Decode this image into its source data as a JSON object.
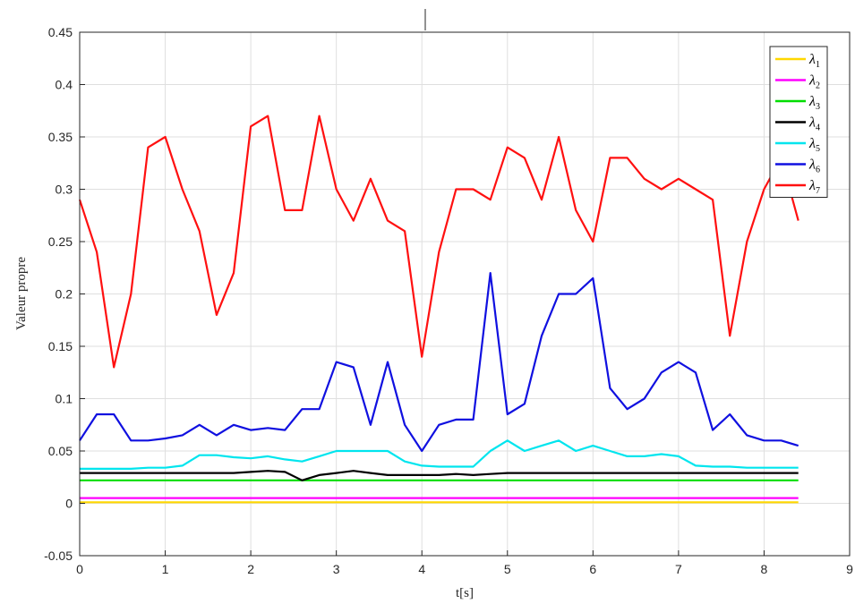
{
  "chart_data": {
    "type": "line",
    "title": "",
    "xlabel": "t[s]",
    "ylabel": "Valeur propre",
    "xlim": [
      0,
      9
    ],
    "ylim": [
      -0.05,
      0.45
    ],
    "x_ticks": [
      "0",
      "1",
      "2",
      "3",
      "4",
      "5",
      "6",
      "7",
      "8",
      "9"
    ],
    "y_ticks": [
      "-0.05",
      "0",
      "0.05",
      "0.1",
      "0.15",
      "0.2",
      "0.25",
      "0.3",
      "0.35",
      "0.4",
      "0.45"
    ],
    "grid": true,
    "legend_position": "top-right",
    "x": [
      0,
      0.2,
      0.4,
      0.6,
      0.8,
      1,
      1.2,
      1.4,
      1.6,
      1.8,
      2,
      2.2,
      2.4,
      2.6,
      2.8,
      3,
      3.2,
      3.4,
      3.6,
      3.8,
      4,
      4.2,
      4.4,
      4.6,
      4.8,
      5,
      5.2,
      5.4,
      5.6,
      5.8,
      6,
      6.2,
      6.4,
      6.6,
      6.8,
      7,
      7.2,
      7.4,
      7.6,
      7.8,
      8,
      8.2,
      8.4
    ],
    "series": [
      {
        "name": "λ1",
        "color": "#ffd700",
        "values": [
          0.001,
          0.001,
          0.001,
          0.001,
          0.001,
          0.001,
          0.001,
          0.001,
          0.001,
          0.001,
          0.001,
          0.001,
          0.001,
          0.001,
          0.001,
          0.001,
          0.001,
          0.001,
          0.001,
          0.001,
          0.001,
          0.001,
          0.001,
          0.001,
          0.001,
          0.001,
          0.001,
          0.001,
          0.001,
          0.001,
          0.001,
          0.001,
          0.001,
          0.001,
          0.001,
          0.001,
          0.001,
          0.001,
          0.001,
          0.001,
          0.001,
          0.001,
          0.001
        ]
      },
      {
        "name": "λ2",
        "color": "#ff00ff",
        "values": [
          0.005,
          0.005,
          0.005,
          0.005,
          0.005,
          0.005,
          0.005,
          0.005,
          0.005,
          0.005,
          0.005,
          0.005,
          0.005,
          0.005,
          0.005,
          0.005,
          0.005,
          0.005,
          0.005,
          0.005,
          0.005,
          0.005,
          0.005,
          0.005,
          0.005,
          0.005,
          0.005,
          0.005,
          0.005,
          0.005,
          0.005,
          0.005,
          0.005,
          0.005,
          0.005,
          0.005,
          0.005,
          0.005,
          0.005,
          0.005,
          0.005,
          0.005,
          0.005
        ]
      },
      {
        "name": "λ3",
        "color": "#00dd00",
        "values": [
          0.022,
          0.022,
          0.022,
          0.022,
          0.022,
          0.022,
          0.022,
          0.022,
          0.022,
          0.022,
          0.022,
          0.022,
          0.022,
          0.022,
          0.022,
          0.022,
          0.022,
          0.022,
          0.022,
          0.022,
          0.022,
          0.022,
          0.022,
          0.022,
          0.022,
          0.022,
          0.022,
          0.022,
          0.022,
          0.022,
          0.022,
          0.022,
          0.022,
          0.022,
          0.022,
          0.022,
          0.022,
          0.022,
          0.022,
          0.022,
          0.022,
          0.022,
          0.022
        ]
      },
      {
        "name": "λ4",
        "color": "#000000",
        "values": [
          0.029,
          0.029,
          0.029,
          0.029,
          0.029,
          0.029,
          0.029,
          0.029,
          0.029,
          0.029,
          0.03,
          0.031,
          0.03,
          0.022,
          0.027,
          0.029,
          0.031,
          0.029,
          0.027,
          0.027,
          0.027,
          0.027,
          0.028,
          0.027,
          0.028,
          0.029,
          0.029,
          0.029,
          0.029,
          0.029,
          0.029,
          0.029,
          0.029,
          0.029,
          0.029,
          0.029,
          0.029,
          0.029,
          0.029,
          0.029,
          0.029,
          0.029,
          0.029
        ]
      },
      {
        "name": "λ5",
        "color": "#00e5ee",
        "values": [
          0.033,
          0.033,
          0.033,
          0.033,
          0.034,
          0.034,
          0.036,
          0.046,
          0.046,
          0.044,
          0.043,
          0.045,
          0.042,
          0.04,
          0.045,
          0.05,
          0.05,
          0.05,
          0.05,
          0.04,
          0.036,
          0.035,
          0.035,
          0.035,
          0.05,
          0.06,
          0.05,
          0.055,
          0.06,
          0.05,
          0.055,
          0.05,
          0.045,
          0.045,
          0.047,
          0.045,
          0.036,
          0.035,
          0.035,
          0.034,
          0.034,
          0.034,
          0.034
        ]
      },
      {
        "name": "λ6",
        "color": "#1010e0",
        "values": [
          0.06,
          0.085,
          0.085,
          0.06,
          0.06,
          0.062,
          0.065,
          0.075,
          0.065,
          0.075,
          0.07,
          0.072,
          0.07,
          0.09,
          0.09,
          0.135,
          0.13,
          0.075,
          0.135,
          0.075,
          0.05,
          0.075,
          0.08,
          0.08,
          0.22,
          0.085,
          0.095,
          0.16,
          0.2,
          0.2,
          0.215,
          0.11,
          0.09,
          0.1,
          0.125,
          0.135,
          0.125,
          0.07,
          0.085,
          0.065,
          0.06,
          0.06,
          0.055
        ]
      },
      {
        "name": "λ7",
        "color": "#ff1010",
        "values": [
          0.29,
          0.24,
          0.13,
          0.2,
          0.34,
          0.35,
          0.3,
          0.26,
          0.18,
          0.22,
          0.36,
          0.37,
          0.28,
          0.28,
          0.37,
          0.3,
          0.27,
          0.31,
          0.27,
          0.26,
          0.14,
          0.24,
          0.3,
          0.3,
          0.29,
          0.34,
          0.33,
          0.29,
          0.35,
          0.28,
          0.25,
          0.33,
          0.33,
          0.31,
          0.3,
          0.31,
          0.3,
          0.29,
          0.16,
          0.25,
          0.3,
          0.33,
          0.27
        ]
      }
    ]
  }
}
